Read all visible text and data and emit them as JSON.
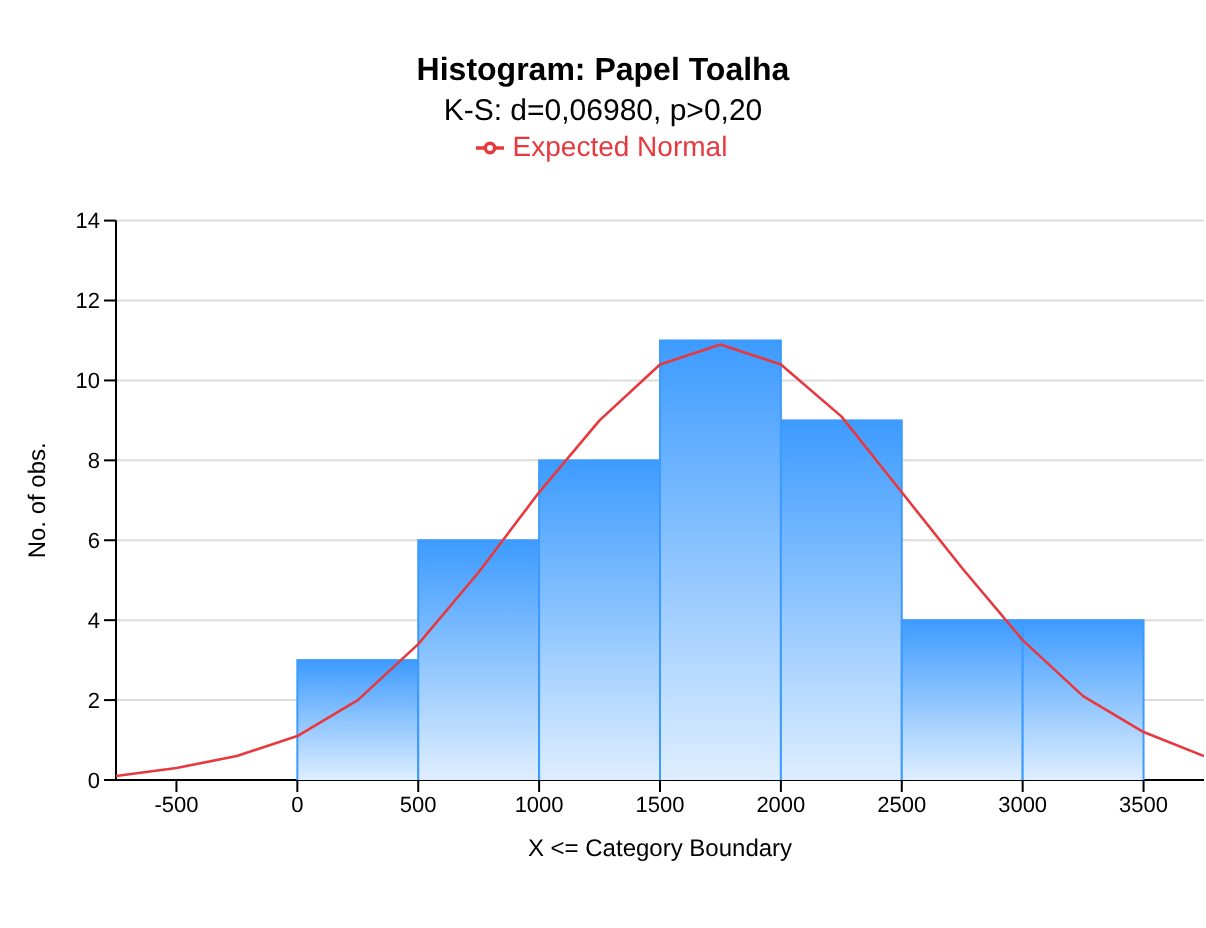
{
  "chart_data": {
    "type": "histogram",
    "title": "Histogram: Papel Toalha",
    "subtitle": "K-S: d=0,06980, p>0,20",
    "xlabel": "X <= Category Boundary",
    "ylabel": "No. of obs.",
    "bins": [
      0,
      500,
      1000,
      1500,
      2000,
      2500,
      3000,
      3500
    ],
    "values": [
      3,
      6,
      8,
      11,
      9,
      4,
      4
    ],
    "color": "#3d9bff",
    "series": [
      {
        "name": "Expected Normal",
        "type": "line",
        "color": "#e8383d",
        "marker": "none",
        "x": [
          -750,
          -500,
          -250,
          0,
          250,
          500,
          750,
          1000,
          1250,
          1500,
          1750,
          2000,
          2250,
          2500,
          2750,
          3000,
          3250,
          3500,
          3750
        ],
        "values": [
          0.1,
          0.3,
          0.6,
          1.1,
          2.0,
          3.4,
          5.2,
          7.2,
          9.0,
          10.4,
          10.9,
          10.4,
          9.1,
          7.2,
          5.3,
          3.5,
          2.1,
          1.2,
          0.6
        ]
      }
    ],
    "xlim": [
      -750,
      3750
    ],
    "xticks": [
      -500,
      0,
      500,
      1000,
      1500,
      2000,
      2500,
      3000,
      3500
    ],
    "ylim": [
      0,
      14
    ],
    "yticks": [
      0,
      2,
      4,
      6,
      8,
      10,
      12,
      14
    ],
    "grid": "y",
    "legend": "top"
  }
}
